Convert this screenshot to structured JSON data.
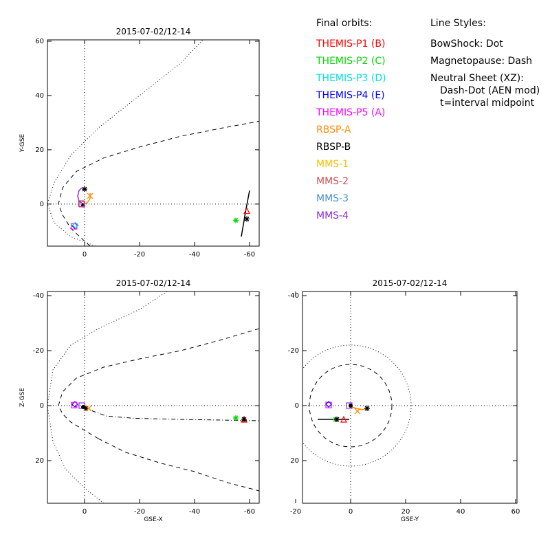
{
  "legend": {
    "title": "Final orbits:",
    "items": [
      {
        "label": "THEMIS-P1 (B)",
        "color": "#ff0000"
      },
      {
        "label": "THEMIS-P2 (C)",
        "color": "#00d800"
      },
      {
        "label": "THEMIS-P3 (D)",
        "color": "#00e0e0"
      },
      {
        "label": "THEMIS-P4 (E)",
        "color": "#0000ff"
      },
      {
        "label": "THEMIS-P5 (A)",
        "color": "#ff00ff"
      },
      {
        "label": "RBSP-A",
        "color": "#ff8c00"
      },
      {
        "label": "RBSP-B",
        "color": "#000000"
      },
      {
        "label": "MMS-1",
        "color": "#ffc000"
      },
      {
        "label": "MMS-2",
        "color": "#d05050"
      },
      {
        "label": "MMS-3",
        "color": "#4a90c8"
      },
      {
        "label": "MMS-4",
        "color": "#8a2be2"
      }
    ]
  },
  "line_styles": {
    "title": "Line Styles:",
    "items": [
      "BowShock: Dot",
      "Magnetopause: Dash",
      "Neutral Sheet (XZ):",
      "Dash-Dot (AEN mod)",
      "t=interval midpoint"
    ]
  },
  "chart_data": [
    {
      "type": "scatter",
      "title": "2015-07-02/12-14",
      "xlabel": "",
      "ylabel": "Y-GSE",
      "xlim": [
        13.5,
        -63.5
      ],
      "ylim": [
        60.5,
        -15.5
      ],
      "xticks": [
        0,
        -20,
        -40,
        -60
      ],
      "yticks": [
        0,
        20,
        40,
        60
      ],
      "grid": false,
      "curves": [
        {
          "name": "bowshock",
          "style": "dot",
          "points": [
            [
              -4,
              -15.5
            ],
            [
              5,
              -12
            ],
            [
              11,
              -7
            ],
            [
              13.5,
              0
            ],
            [
              11,
              8
            ],
            [
              5,
              18
            ],
            [
              -5,
              28
            ],
            [
              -20,
              40
            ],
            [
              -35,
              52
            ],
            [
              -43,
              60.5
            ]
          ]
        },
        {
          "name": "magnetopause",
          "style": "dash",
          "points": [
            [
              -2,
              -15.5
            ],
            [
              5,
              -9
            ],
            [
              8,
              -4
            ],
            [
              9.5,
              0
            ],
            [
              8,
              6
            ],
            [
              3,
              12
            ],
            [
              -7,
              17
            ],
            [
              -20,
              21
            ],
            [
              -35,
              25
            ],
            [
              -50,
              28
            ],
            [
              -63.5,
              30.5
            ]
          ]
        },
        {
          "name": "rbsp-a-track",
          "style": "solid",
          "color": "#ff8c00",
          "points": [
            [
              0,
              0
            ],
            [
              -1,
              0.5
            ],
            [
              -2,
              2
            ],
            [
              -2,
              4
            ]
          ]
        },
        {
          "name": "mms-track",
          "style": "solid",
          "color": "#8a2be2",
          "points": [
            [
              0.5,
              0
            ],
            [
              2,
              1
            ],
            [
              2.5,
              3
            ],
            [
              2,
              5
            ],
            [
              1,
              6
            ]
          ]
        },
        {
          "name": "rbsp-b-track",
          "style": "solid",
          "color": "#000000",
          "points": [
            [
              -57,
              -12
            ],
            [
              -58.5,
              -3
            ],
            [
              -60,
              5
            ]
          ]
        }
      ],
      "points": [
        {
          "x": 3.5,
          "y": -8,
          "marker": "diamond",
          "color": "#0000ff"
        },
        {
          "x": 3.8,
          "y": -8.2,
          "marker": "square",
          "color": "#ff00ff"
        },
        {
          "x": 3.3,
          "y": -7.8,
          "marker": "diamond",
          "color": "#00e0e0"
        },
        {
          "x": -55,
          "y": -6,
          "marker": "star",
          "color": "#00d800"
        },
        {
          "x": -59,
          "y": -2.5,
          "marker": "triangle",
          "color": "#ff0000"
        },
        {
          "x": -59,
          "y": -5.5,
          "marker": "star",
          "color": "#000000"
        },
        {
          "x": 0.5,
          "y": -0.5,
          "marker": "dot",
          "color": "#000000"
        },
        {
          "x": 1,
          "y": 0,
          "marker": "square",
          "color": "#8a2be2"
        },
        {
          "x": 1.2,
          "y": 0.2,
          "marker": "square",
          "color": "#d05050"
        },
        {
          "x": -2,
          "y": 3,
          "marker": "x",
          "color": "#ff8c00"
        },
        {
          "x": 0,
          "y": 5.5,
          "marker": "star",
          "color": "#000000"
        }
      ]
    },
    {
      "type": "scatter",
      "title": "2015-07-02/12-14",
      "xlabel": "GSE-X",
      "ylabel": "Z-GSE",
      "xlim": [
        13.5,
        -63.5
      ],
      "ylim": [
        -41.5,
        35.5
      ],
      "xticks": [
        0,
        -20,
        -40,
        -60
      ],
      "yticks": [
        20,
        0,
        -20,
        -40
      ],
      "grid": false,
      "curves": [
        {
          "name": "bowshock",
          "style": "dot",
          "points": [
            [
              -7,
              35.5
            ],
            [
              0,
              30
            ],
            [
              7,
              23
            ],
            [
              11.5,
              13
            ],
            [
              13.5,
              0
            ],
            [
              11.5,
              -13
            ],
            [
              5,
              -22
            ],
            [
              -5,
              -28
            ],
            [
              -20,
              -35
            ],
            [
              -30,
              -41.5
            ]
          ]
        },
        {
          "name": "magnetopause",
          "style": "dash",
          "points": [
            [
              -5,
              12
            ],
            [
              0,
              9
            ],
            [
              5,
              6
            ],
            [
              8,
              3
            ],
            [
              9.5,
              0
            ],
            [
              8,
              -5
            ],
            [
              3,
              -10
            ],
            [
              -7,
              -14
            ],
            [
              -20,
              -17
            ],
            [
              -35,
              -20
            ],
            [
              -50,
              -24
            ],
            [
              -63.5,
              -28
            ]
          ]
        },
        {
          "name": "magnetopause-north",
          "style": "dash",
          "points": [
            [
              -5,
              12
            ],
            [
              -15,
              17
            ],
            [
              -28,
              21
            ],
            [
              -40,
              24
            ],
            [
              -52,
              28
            ],
            [
              -63.5,
              31
            ]
          ]
        },
        {
          "name": "neutral-sheet",
          "style": "dashdot",
          "points": [
            [
              0,
              0
            ],
            [
              -3,
              2
            ],
            [
              -8,
              3.8
            ],
            [
              -18,
              4.6
            ],
            [
              -35,
              5
            ],
            [
              -63.5,
              5.5
            ]
          ]
        }
      ],
      "points": [
        {
          "x": 3.5,
          "y": -0.5,
          "marker": "diamond",
          "color": "#0000ff"
        },
        {
          "x": 3.8,
          "y": -0.2,
          "marker": "square",
          "color": "#ff00ff"
        },
        {
          "x": 1,
          "y": 0,
          "marker": "square",
          "color": "#8a2be2"
        },
        {
          "x": 0.5,
          "y": 0.5,
          "marker": "dot",
          "color": "#000000"
        },
        {
          "x": -0.5,
          "y": 1,
          "marker": "star",
          "color": "#000000"
        },
        {
          "x": -1.5,
          "y": 1,
          "marker": "x",
          "color": "#ff8c00"
        },
        {
          "x": -55,
          "y": 4.5,
          "marker": "star",
          "color": "#00d800"
        },
        {
          "x": -58,
          "y": 5,
          "marker": "triangle",
          "color": "#ff0000"
        },
        {
          "x": -58,
          "y": 5,
          "marker": "star",
          "color": "#000000"
        }
      ]
    },
    {
      "type": "scatter",
      "title": "2015-07-02/12-14",
      "xlabel": "GSE-Y",
      "ylabel": "",
      "xlim": [
        -17.5,
        60.5
      ],
      "ylim": [
        -41.5,
        35.5
      ],
      "xticks": [
        -20,
        0,
        20,
        40,
        60
      ],
      "yticks": [
        20,
        0,
        -20,
        -40
      ],
      "grid": false,
      "curves": [
        {
          "name": "bowshock",
          "style": "dot",
          "circle": [
            0,
            0,
            22
          ]
        },
        {
          "name": "magnetopause",
          "style": "dash",
          "circle": [
            0,
            0,
            15
          ]
        },
        {
          "name": "neutral-sheet",
          "style": "solid",
          "points": [
            [
              -12,
              5
            ],
            [
              -0.5,
              5
            ]
          ]
        },
        {
          "name": "rbsp-track",
          "style": "solid",
          "color": "#ff8c00",
          "points": [
            [
              0.5,
              0.5
            ],
            [
              2,
              1
            ],
            [
              4,
              1.5
            ],
            [
              6,
              1
            ]
          ]
        }
      ],
      "points": [
        {
          "x": -8,
          "y": -0.2,
          "marker": "square",
          "color": "#ff00ff"
        },
        {
          "x": -8,
          "y": -0.5,
          "marker": "diamond",
          "color": "#0000ff"
        },
        {
          "x": -0.5,
          "y": 0,
          "marker": "square",
          "color": "#8a2be2"
        },
        {
          "x": 0,
          "y": 0,
          "marker": "dot",
          "color": "#000000"
        },
        {
          "x": -5.5,
          "y": 5,
          "marker": "star",
          "color": "#00d800"
        },
        {
          "x": -5,
          "y": 5,
          "marker": "star",
          "color": "#000000"
        },
        {
          "x": -2.5,
          "y": 5,
          "marker": "triangle",
          "color": "#ff0000"
        },
        {
          "x": 2.5,
          "y": 2,
          "marker": "x",
          "color": "#ff8c00"
        },
        {
          "x": 6,
          "y": 1,
          "marker": "star",
          "color": "#000000"
        }
      ]
    }
  ]
}
